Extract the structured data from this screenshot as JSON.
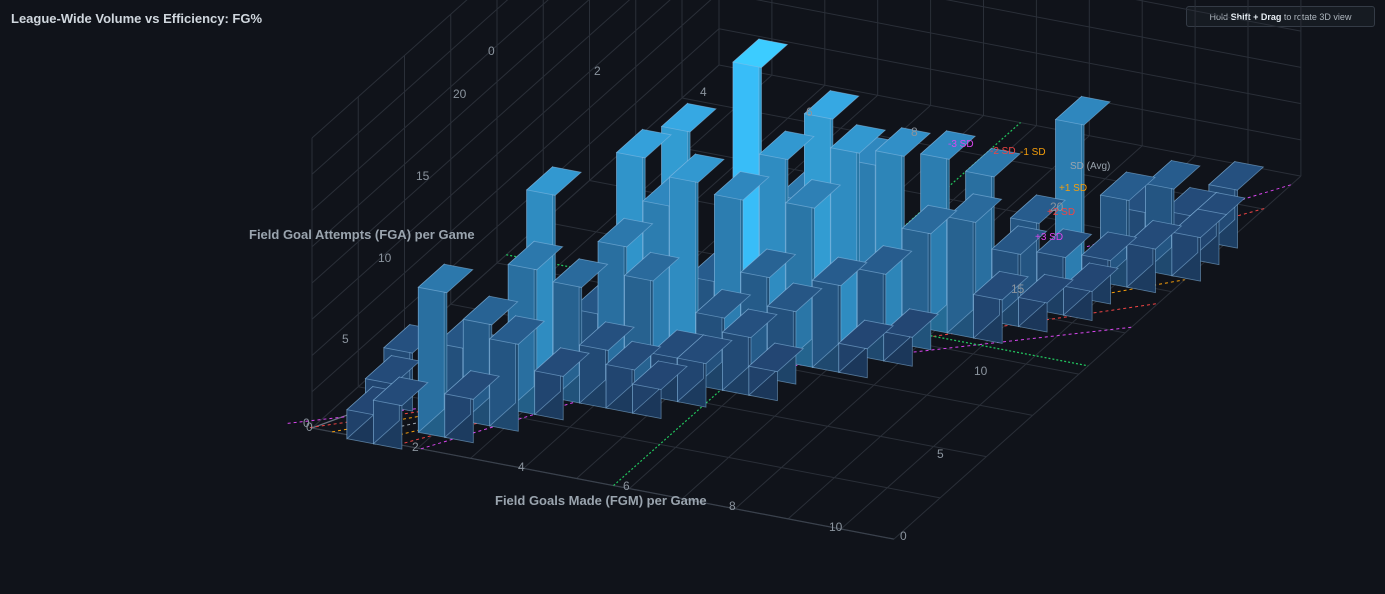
{
  "header": {
    "title": "League-Wide Volume vs Efficiency: FG%",
    "hint_prefix": "Hold",
    "hint_key1": "Shift",
    "hint_plus": "+",
    "hint_key2": "Drag",
    "hint_suffix": "to rotate 3D view"
  },
  "colors": {
    "background": "#10131a",
    "bar_low": "#1f3a63",
    "bar_high": "#38bdf8",
    "mean_line": "#22c55e",
    "sd1": "#f59e0b",
    "sd2": "#ef4444",
    "sd3": "#d946ef"
  },
  "chart_data": {
    "type": "3d-bar",
    "title": "League-Wide Volume vs Efficiency: FG%",
    "xlabel": "Field Goals Made (FGM) per Game",
    "ylabel": "Field Goal Attempts (FGA) per Game",
    "xlim": [
      0,
      11
    ],
    "ylim": [
      0,
      22
    ],
    "zlim": [
      0,
      20
    ],
    "x_ticks": [
      "0",
      "2",
      "4",
      "6",
      "8",
      "10"
    ],
    "y_ticks": [
      "0",
      "5",
      "10",
      "15",
      "20"
    ],
    "z_ticks": [
      "0",
      "5",
      "10",
      "15",
      "20"
    ],
    "sd_labels": [
      "-3 SD",
      "-2 SD",
      "-1 SD",
      "SD (Avg)",
      "+1 SD",
      "+2 SD",
      "+3 SD"
    ],
    "bars": [
      [
        1,
        0.5,
        2
      ],
      [
        1,
        1.5,
        3
      ],
      [
        1,
        2.5,
        4
      ],
      [
        1.5,
        0.5,
        3
      ],
      [
        2,
        1.5,
        10
      ],
      [
        2,
        2.5,
        5
      ],
      [
        2,
        3.5,
        3
      ],
      [
        2.5,
        1.5,
        3
      ],
      [
        2.5,
        2.5,
        7
      ],
      [
        3,
        2.5,
        6
      ],
      [
        3,
        3.5,
        10
      ],
      [
        3,
        4.5,
        14
      ],
      [
        3.5,
        4.5,
        8
      ],
      [
        3.5,
        5.5,
        5
      ],
      [
        3.5,
        3.5,
        3
      ],
      [
        4,
        5.5,
        10
      ],
      [
        4,
        6.5,
        15
      ],
      [
        4,
        4.5,
        4
      ],
      [
        4.5,
        5.5,
        8
      ],
      [
        4.5,
        6.5,
        12
      ],
      [
        4.5,
        7.5,
        16
      ],
      [
        4.5,
        4.5,
        3
      ],
      [
        5,
        6.5,
        14
      ],
      [
        5,
        7.5,
        6
      ],
      [
        5,
        5.5,
        3
      ],
      [
        5.5,
        7.5,
        12
      ],
      [
        5.5,
        8.5,
        20
      ],
      [
        5.5,
        6.5,
        5
      ],
      [
        5.5,
        5.5,
        3
      ],
      [
        6,
        8.5,
        14
      ],
      [
        6,
        7.5,
        7
      ],
      [
        6,
        6.5,
        4
      ],
      [
        6,
        9.5,
        10
      ],
      [
        6.5,
        8.5,
        11
      ],
      [
        6.5,
        9.5,
        16
      ],
      [
        6.5,
        7.5,
        5
      ],
      [
        7,
        9.5,
        14
      ],
      [
        7,
        8.5,
        6
      ],
      [
        7,
        10.5,
        12
      ],
      [
        7.5,
        9.5,
        6
      ],
      [
        7.5,
        10.5,
        13
      ],
      [
        8,
        10.5,
        8
      ],
      [
        8,
        11.5,
        12
      ],
      [
        8,
        9.5,
        2
      ],
      [
        8.5,
        11.5,
        8
      ],
      [
        8.5,
        12.5,
        10
      ],
      [
        9,
        12.5,
        5
      ],
      [
        9,
        11.5,
        3
      ],
      [
        9,
        13.5,
        6
      ],
      [
        9.5,
        13.5,
        4
      ],
      [
        9.5,
        14.5,
        12
      ],
      [
        10,
        14.5,
        3
      ],
      [
        10,
        15.5,
        6
      ],
      [
        10,
        13.5,
        2
      ],
      [
        10.5,
        15.5,
        3
      ],
      [
        10.5,
        16.5,
        6
      ],
      [
        10.5,
        17.5,
        3
      ],
      [
        11,
        17.5,
        3
      ],
      [
        11,
        18.5,
        4
      ],
      [
        9.5,
        12.5,
        2
      ],
      [
        7.5,
        8.5,
        2
      ],
      [
        6.5,
        6.5,
        2
      ],
      [
        5,
        4.5,
        2
      ],
      [
        10,
        16.5,
        4
      ],
      [
        11,
        16.5,
        3
      ]
    ]
  }
}
